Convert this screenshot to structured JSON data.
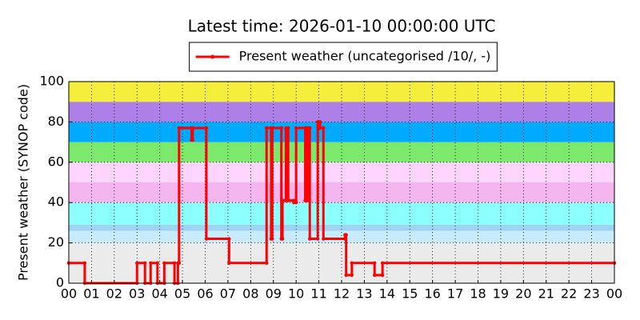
{
  "chart_data": {
    "type": "line",
    "title": "Latest time: 2026-01-10 00:00:00 UTC",
    "y_label": "Present weather (SYNOP code)",
    "legend_position": "top",
    "grid": true,
    "bands": [
      {
        "from": 0,
        "to": 20,
        "color": "#ebebeb"
      },
      {
        "from": 20,
        "to": 26,
        "color": "#c8ecff"
      },
      {
        "from": 26,
        "to": 29,
        "color": "#9fd3f5"
      },
      {
        "from": 29,
        "to": 40,
        "color": "#8cffff"
      },
      {
        "from": 40,
        "to": 50,
        "color": "#f5b5ef"
      },
      {
        "from": 50,
        "to": 60,
        "color": "#ffd4ff"
      },
      {
        "from": 60,
        "to": 70,
        "color": "#7ce86c"
      },
      {
        "from": 70,
        "to": 80,
        "color": "#00aaff"
      },
      {
        "from": 80,
        "to": 90,
        "color": "#ad80e8"
      },
      {
        "from": 90,
        "to": 100,
        "color": "#f5ef3c"
      }
    ],
    "x": [
      0,
      0.7,
      0.7,
      3.0,
      3.0,
      3.35,
      3.35,
      3.6,
      3.6,
      3.9,
      3.9,
      4.2,
      4.2,
      4.65,
      4.65,
      4.8,
      4.8,
      4.85,
      4.85,
      5.4,
      5.4,
      5.45,
      5.45,
      6.05,
      6.05,
      7.05,
      7.05,
      8.7,
      8.7,
      8.9,
      8.9,
      8.95,
      8.95,
      9.35,
      9.35,
      9.4,
      9.4,
      9.55,
      9.55,
      9.65,
      9.65,
      9.9,
      9.9,
      10.0,
      10.0,
      10.4,
      10.4,
      10.5,
      10.5,
      10.6,
      10.6,
      10.95,
      10.95,
      11.05,
      11.05,
      11.2,
      11.2,
      12.15,
      12.15,
      12.2,
      12.2,
      12.45,
      12.45,
      13.45,
      13.45,
      13.8,
      13.8,
      24
    ],
    "series": [
      {
        "name": "Present weather (uncategorised /10/, -)",
        "color": "#ff0000",
        "values": [
          10,
          10,
          0,
          0,
          10,
          10,
          0,
          0,
          10,
          10,
          0,
          0,
          10,
          10,
          0,
          0,
          10,
          10,
          77,
          77,
          71,
          71,
          77,
          77,
          22,
          22,
          10,
          10,
          77,
          77,
          22,
          22,
          77,
          77,
          22,
          22,
          41,
          41,
          77,
          77,
          41,
          41,
          40,
          40,
          77,
          77,
          41,
          41,
          77,
          77,
          22,
          22,
          80,
          80,
          77,
          77,
          22,
          22,
          24,
          24,
          4,
          4,
          10,
          10,
          4,
          4,
          10,
          10
        ]
      }
    ],
    "xlim": [
      0,
      24
    ],
    "xticks": [
      {
        "value": 0,
        "label": "00"
      },
      {
        "value": 1,
        "label": "01"
      },
      {
        "value": 2,
        "label": "02"
      },
      {
        "value": 3,
        "label": "03"
      },
      {
        "value": 4,
        "label": "04"
      },
      {
        "value": 5,
        "label": "05"
      },
      {
        "value": 6,
        "label": "06"
      },
      {
        "value": 7,
        "label": "07"
      },
      {
        "value": 8,
        "label": "08"
      },
      {
        "value": 9,
        "label": "09"
      },
      {
        "value": 10,
        "label": "10"
      },
      {
        "value": 11,
        "label": "11"
      },
      {
        "value": 12,
        "label": "12"
      },
      {
        "value": 13,
        "label": "13"
      },
      {
        "value": 14,
        "label": "14"
      },
      {
        "value": 15,
        "label": "15"
      },
      {
        "value": 16,
        "label": "16"
      },
      {
        "value": 17,
        "label": "17"
      },
      {
        "value": 18,
        "label": "18"
      },
      {
        "value": 19,
        "label": "19"
      },
      {
        "value": 20,
        "label": "20"
      },
      {
        "value": 21,
        "label": "21"
      },
      {
        "value": 22,
        "label": "22"
      },
      {
        "value": 23,
        "label": "23"
      },
      {
        "value": 24,
        "label": "00"
      }
    ],
    "ylim": [
      0,
      100
    ],
    "yticks": [
      0,
      20,
      40,
      60,
      80,
      100
    ]
  }
}
